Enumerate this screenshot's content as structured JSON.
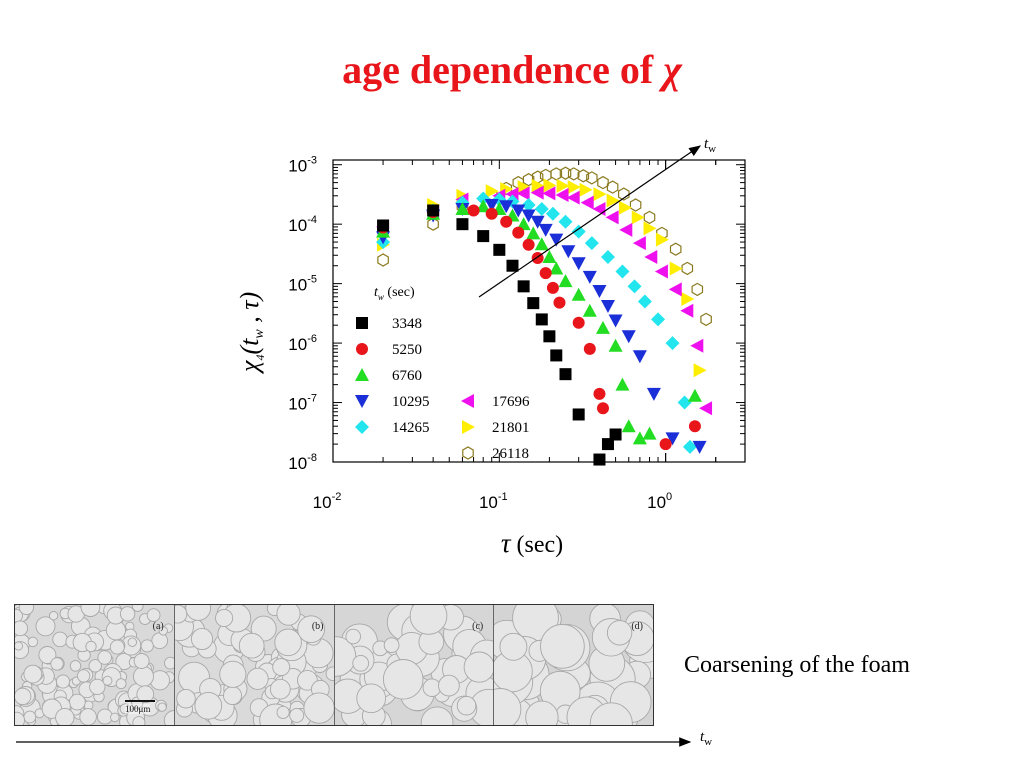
{
  "title": {
    "prefix": "age dependence of",
    "symbol": "χ"
  },
  "chart_data": {
    "type": "scatter",
    "scale": "log-log",
    "xlabel_symbol": "τ",
    "xlabel_unit": "(sec)",
    "ylabel": "χ4(tw , τ)",
    "xlim": [
      0.01,
      3.0
    ],
    "ylim": [
      1e-08,
      0.0012
    ],
    "x_ticks": [
      {
        "value": 0.01,
        "base": "10",
        "exp": "-2"
      },
      {
        "value": 0.1,
        "base": "10",
        "exp": "-1"
      },
      {
        "value": 1,
        "base": "10",
        "exp": "0"
      }
    ],
    "y_ticks": [
      {
        "value": 0.001,
        "base": "10",
        "exp": "-3"
      },
      {
        "value": 0.0001,
        "base": "10",
        "exp": "-4"
      },
      {
        "value": 1e-05,
        "base": "10",
        "exp": "-5"
      },
      {
        "value": 1e-06,
        "base": "10",
        "exp": "-6"
      },
      {
        "value": 1e-07,
        "base": "10",
        "exp": "-7"
      },
      {
        "value": 1e-08,
        "base": "10",
        "exp": "-8"
      }
    ],
    "legend_title": "tw (sec)",
    "legend_title_parts": {
      "var": "t",
      "sub": "w",
      "unit": "(sec)"
    },
    "legend_position": "lower-left",
    "arrow_label": {
      "var": "t",
      "sub": "w"
    },
    "series": [
      {
        "name": "3348",
        "marker": "square",
        "color": "#000000",
        "points": [
          [
            0.02,
            9.5e-05
          ],
          [
            0.04,
            0.00017
          ],
          [
            0.06,
            0.0001
          ],
          [
            0.08,
            6.3e-05
          ],
          [
            0.1,
            3.7e-05
          ],
          [
            0.12,
            2e-05
          ],
          [
            0.14,
            9e-06
          ],
          [
            0.16,
            4.7e-06
          ],
          [
            0.18,
            2.5e-06
          ],
          [
            0.2,
            1.3e-06
          ],
          [
            0.22,
            6.2e-07
          ],
          [
            0.25,
            3e-07
          ],
          [
            0.3,
            6.3e-08
          ],
          [
            0.4,
            1.1e-08
          ],
          [
            0.45,
            2e-08
          ],
          [
            0.5,
            2.9e-08
          ]
        ]
      },
      {
        "name": "5250",
        "marker": "circle",
        "color": "#e8151b",
        "points": [
          [
            0.02,
            8.8e-05
          ],
          [
            0.04,
            0.00016
          ],
          [
            0.07,
            0.00017
          ],
          [
            0.09,
            0.00015
          ],
          [
            0.11,
            0.00011
          ],
          [
            0.13,
            7.2e-05
          ],
          [
            0.15,
            4.5e-05
          ],
          [
            0.17,
            2.7e-05
          ],
          [
            0.19,
            1.5e-05
          ],
          [
            0.21,
            8.5e-06
          ],
          [
            0.23,
            4.8e-06
          ],
          [
            0.3,
            2.2e-06
          ],
          [
            0.35,
            8e-07
          ],
          [
            0.4,
            1.4e-07
          ],
          [
            0.42,
            8e-08
          ],
          [
            1.0,
            2e-08
          ],
          [
            1.5,
            4e-08
          ]
        ]
      },
      {
        "name": "6760",
        "marker": "triangle-up",
        "color": "#22dd22",
        "points": [
          [
            0.02,
            7.5e-05
          ],
          [
            0.04,
            0.00015
          ],
          [
            0.06,
            0.00018
          ],
          [
            0.08,
            0.0002
          ],
          [
            0.1,
            0.00018
          ],
          [
            0.12,
            0.00014
          ],
          [
            0.14,
            0.0001
          ],
          [
            0.16,
            7e-05
          ],
          [
            0.18,
            4.6e-05
          ],
          [
            0.2,
            2.8e-05
          ],
          [
            0.22,
            1.8e-05
          ],
          [
            0.25,
            1.1e-05
          ],
          [
            0.3,
            6.5e-06
          ],
          [
            0.35,
            3.5e-06
          ],
          [
            0.42,
            1.8e-06
          ],
          [
            0.5,
            9e-07
          ],
          [
            0.55,
            2e-07
          ],
          [
            0.6,
            4e-08
          ],
          [
            0.7,
            2.5e-08
          ],
          [
            0.8,
            3e-08
          ],
          [
            1.5,
            1.3e-07
          ]
        ]
      },
      {
        "name": "10295",
        "marker": "triangle-down",
        "color": "#1a2fd8",
        "points": [
          [
            0.02,
            6e-05
          ],
          [
            0.04,
            0.00014
          ],
          [
            0.06,
            0.00018
          ],
          [
            0.09,
            0.00021
          ],
          [
            0.11,
            0.0002
          ],
          [
            0.13,
            0.00017
          ],
          [
            0.15,
            0.00014
          ],
          [
            0.17,
            0.00011
          ],
          [
            0.19,
            8e-05
          ],
          [
            0.22,
            5.5e-05
          ],
          [
            0.26,
            3.5e-05
          ],
          [
            0.3,
            2.2e-05
          ],
          [
            0.35,
            1.3e-05
          ],
          [
            0.4,
            7.5e-06
          ],
          [
            0.45,
            4.2e-06
          ],
          [
            0.5,
            2.4e-06
          ],
          [
            0.6,
            1.3e-06
          ],
          [
            0.7,
            6e-07
          ],
          [
            0.85,
            1.4e-07
          ],
          [
            1.1,
            2.5e-08
          ],
          [
            1.6,
            1.8e-08
          ]
        ]
      },
      {
        "name": "14265",
        "marker": "diamond",
        "color": "#22e5ee",
        "points": [
          [
            0.02,
            5e-05
          ],
          [
            0.04,
            0.00017
          ],
          [
            0.06,
            0.00023
          ],
          [
            0.08,
            0.00027
          ],
          [
            0.1,
            0.00026
          ],
          [
            0.12,
            0.00024
          ],
          [
            0.15,
            0.00021
          ],
          [
            0.18,
            0.00018
          ],
          [
            0.21,
            0.00015
          ],
          [
            0.25,
            0.00011
          ],
          [
            0.3,
            7.5e-05
          ],
          [
            0.36,
            4.8e-05
          ],
          [
            0.45,
            2.8e-05
          ],
          [
            0.55,
            1.6e-05
          ],
          [
            0.65,
            9e-06
          ],
          [
            0.75,
            5e-06
          ],
          [
            0.9,
            2.5e-06
          ],
          [
            1.1,
            1e-06
          ],
          [
            1.3,
            1e-07
          ],
          [
            1.4,
            1.8e-08
          ]
        ]
      },
      {
        "name": "17696",
        "marker": "triangle-left",
        "color": "#ee11ee",
        "points": [
          [
            0.02,
            9e-05
          ],
          [
            0.04,
            0.00016
          ],
          [
            0.06,
            0.00026
          ],
          [
            0.1,
            0.0003
          ],
          [
            0.12,
            0.00032
          ],
          [
            0.14,
            0.00033
          ],
          [
            0.17,
            0.00034
          ],
          [
            0.2,
            0.00033
          ],
          [
            0.24,
            0.00031
          ],
          [
            0.28,
            0.00028
          ],
          [
            0.34,
            0.00023
          ],
          [
            0.4,
            0.00018
          ],
          [
            0.48,
            0.00013
          ],
          [
            0.58,
            8e-05
          ],
          [
            0.7,
            4.8e-05
          ],
          [
            0.82,
            2.8e-05
          ],
          [
            0.95,
            1.6e-05
          ],
          [
            1.15,
            8e-06
          ],
          [
            1.35,
            3.5e-06
          ],
          [
            1.55,
            9e-07
          ],
          [
            1.75,
            8e-08
          ]
        ]
      },
      {
        "name": "21801",
        "marker": "triangle-right",
        "color": "#ffee00",
        "points": [
          [
            0.02,
            4.5e-05
          ],
          [
            0.04,
            0.00021
          ],
          [
            0.06,
            0.0003
          ],
          [
            0.09,
            0.00036
          ],
          [
            0.11,
            0.00039
          ],
          [
            0.14,
            0.00042
          ],
          [
            0.17,
            0.00044
          ],
          [
            0.2,
            0.00045
          ],
          [
            0.24,
            0.00044
          ],
          [
            0.28,
            0.00042
          ],
          [
            0.33,
            0.00038
          ],
          [
            0.4,
            0.00032
          ],
          [
            0.48,
            0.00025
          ],
          [
            0.57,
            0.00019
          ],
          [
            0.68,
            0.00013
          ],
          [
            0.8,
            8.5e-05
          ],
          [
            0.95,
            5.5e-05
          ],
          [
            1.15,
            1.8e-05
          ],
          [
            1.35,
            5.5e-06
          ],
          [
            1.6,
            3.5e-07
          ]
        ]
      },
      {
        "name": "26118",
        "marker": "hexagon-open",
        "color": "#8a7a1e",
        "points": [
          [
            0.02,
            2.5e-05
          ],
          [
            0.04,
            0.0001
          ],
          [
            0.06,
            0.0002
          ],
          [
            0.09,
            0.00032
          ],
          [
            0.11,
            0.0004
          ],
          [
            0.13,
            0.0005
          ],
          [
            0.15,
            0.00056
          ],
          [
            0.17,
            0.00062
          ],
          [
            0.19,
            0.00066
          ],
          [
            0.22,
            0.0007
          ],
          [
            0.25,
            0.00072
          ],
          [
            0.28,
            0.0007
          ],
          [
            0.32,
            0.00065
          ],
          [
            0.36,
            0.0006
          ],
          [
            0.42,
            0.0005
          ],
          [
            0.48,
            0.00042
          ],
          [
            0.56,
            0.00032
          ],
          [
            0.66,
            0.00021
          ],
          [
            0.8,
            0.00013
          ],
          [
            0.95,
            7e-05
          ],
          [
            1.15,
            3.8e-05
          ],
          [
            1.35,
            1.8e-05
          ],
          [
            1.55,
            8e-06
          ],
          [
            1.75,
            2.5e-06
          ]
        ]
      }
    ]
  },
  "panels": [
    {
      "label": "(a)",
      "scale": "100μm"
    },
    {
      "label": "(b)"
    },
    {
      "label": "(c)"
    },
    {
      "label": "(d)"
    }
  ],
  "caption": "Coarsening of the foam",
  "bottom_arrow_label": {
    "var": "t",
    "sub": "w"
  }
}
